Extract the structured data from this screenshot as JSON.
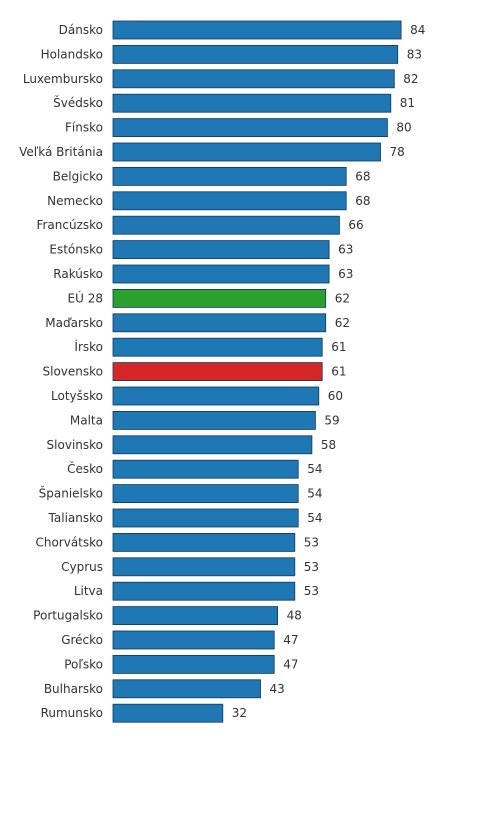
{
  "chart_data": {
    "type": "bar",
    "orientation": "horizontal",
    "categories": [
      "Dánsko",
      "Holandsko",
      "Luxembursko",
      "Švédsko",
      "Fínsko",
      "Veľká Británia",
      "Belgicko",
      "Nemecko",
      "Francúzsko",
      "Estónsko",
      "Rakúsko",
      "EÚ 28",
      "Maďarsko",
      "Írsko",
      "Slovensko",
      "Lotyšsko",
      "Malta",
      "Slovinsko",
      "Česko",
      "Španielsko",
      "Taliansko",
      "Chorvátsko",
      "Cyprus",
      "Litva",
      "Portugalsko",
      "Grécko",
      "Poľsko",
      "Bulharsko",
      "Rumunsko"
    ],
    "values": [
      84,
      83,
      82,
      81,
      80,
      78,
      68,
      68,
      66,
      63,
      63,
      62,
      62,
      61,
      61,
      60,
      59,
      58,
      54,
      54,
      54,
      53,
      53,
      53,
      48,
      47,
      47,
      43,
      32
    ],
    "xlim": [
      0,
      100
    ],
    "grid": false,
    "colors": {
      "default": "#1f77b4",
      "highlights": {
        "EÚ 28": "#2ca02c",
        "Slovensko": "#d62728"
      },
      "bar_border": "#0d3a5c",
      "label_text": "#333333"
    },
    "title": "",
    "xlabel": "",
    "ylabel": ""
  }
}
